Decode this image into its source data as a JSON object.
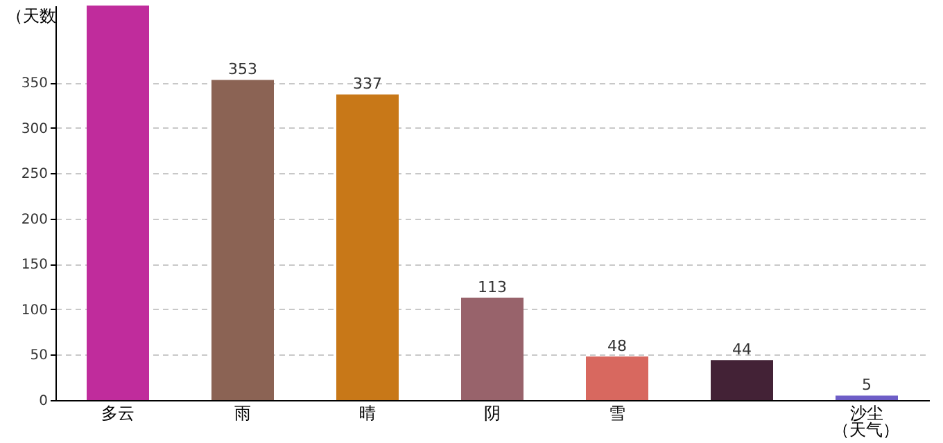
{
  "chart_data": {
    "type": "bar",
    "ylabel": "（天数",
    "xlabel": "（天气）",
    "categories": [
      "多云",
      "雨",
      "晴",
      "阴",
      "雪",
      null,
      "沙尘"
    ],
    "values": [
      435,
      353,
      337,
      113,
      48,
      44,
      5
    ],
    "colors": [
      "#c02c9c",
      "#8b6354",
      "#c87818",
      "#98636b",
      "#d8685f",
      "#432236",
      "#6e5ec7"
    ],
    "value_labels": [
      null,
      "353",
      "337",
      "113",
      "48",
      "44",
      "5"
    ],
    "ylim": [
      0,
      435
    ],
    "yticks": [
      0,
      50,
      100,
      150,
      200,
      250,
      300,
      350
    ],
    "grid": "y"
  }
}
